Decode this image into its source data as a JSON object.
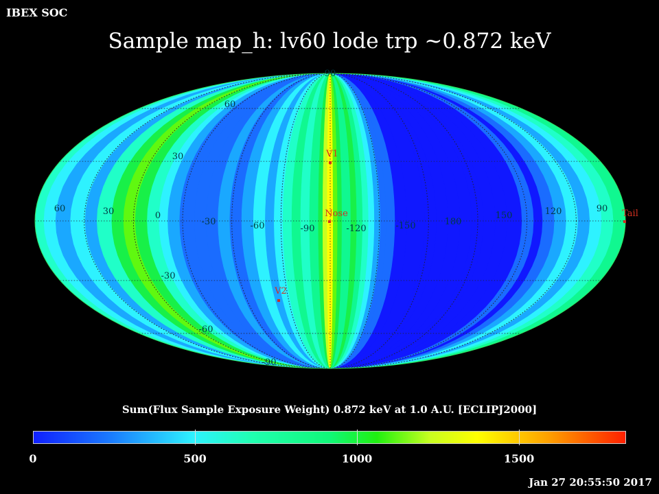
{
  "header": {
    "org": "IBEX SOC",
    "title": "Sample map_h: lv60 lode trp ~0.872 keV"
  },
  "map": {
    "projection": "mollweide",
    "lat_labels": [
      "90",
      "60",
      "30",
      "-30",
      "-60",
      "-90"
    ],
    "lon_labels": [
      "60",
      "30",
      "0",
      "-30",
      "-60",
      "-90",
      "-120",
      "-150",
      "180",
      "150",
      "120",
      "90"
    ],
    "markers": [
      {
        "name": "V1",
        "color": "#d03020"
      },
      {
        "name": "Nose",
        "color": "#d03020"
      },
      {
        "name": "V2",
        "color": "#d03020"
      },
      {
        "name": "Tail",
        "color": "#d03020"
      }
    ],
    "bands_low_to_high": [
      "#1018ff",
      "#1a6cff",
      "#1aa8ff",
      "#2ef2ff",
      "#20ffc8",
      "#10f890",
      "#18f048",
      "#60f810",
      "#c8ff20",
      "#ffff00"
    ]
  },
  "colorbar": {
    "label": "Sum(Flux Sample Exposure Weight)  0.872 keV at 1.0 A.U. [ECLIPJ2000]",
    "ticks": [
      "0",
      "500",
      "1000",
      "1500"
    ]
  },
  "footer": {
    "timestamp": "Jan 27 20:55:50 2017"
  }
}
